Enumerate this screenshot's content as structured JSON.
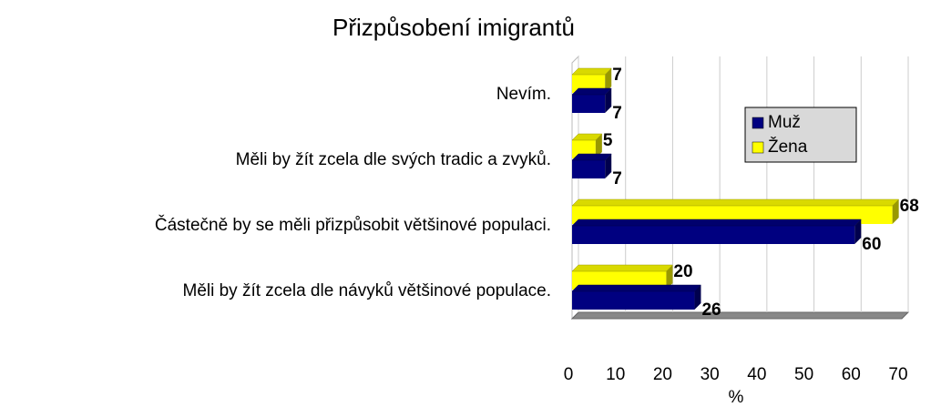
{
  "chart_data": {
    "type": "hbar3d",
    "title": "Přizpůsobení imigrantů",
    "categories": [
      "Nevím.",
      "Měli by žít zcela dle svých tradic a zvyků.",
      "Částečně by se měli přizpůsobit většinové populaci.",
      "Měli by žít zcela dle návyků většinové populace."
    ],
    "series": [
      {
        "name": "Muž",
        "color": "#000080",
        "values": [
          7,
          7,
          60,
          26
        ]
      },
      {
        "name": "Žena",
        "color": "#ffff00",
        "values": [
          7,
          5,
          68,
          20
        ]
      }
    ],
    "xlabel": "%",
    "xlim": [
      0,
      70
    ],
    "xticks": [
      0,
      10,
      20,
      30,
      40,
      50,
      60,
      70
    ],
    "grid": true,
    "legend": "upper right"
  }
}
